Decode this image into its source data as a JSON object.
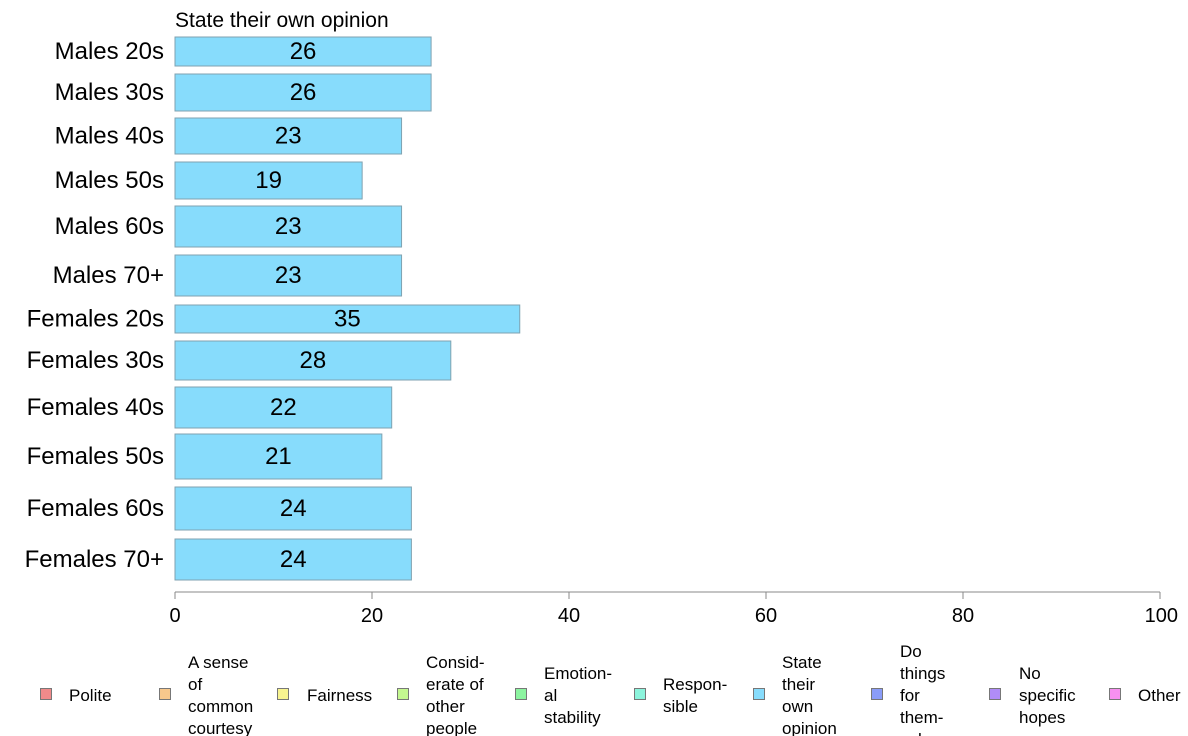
{
  "chart_data": {
    "type": "bar",
    "orientation": "horizontal",
    "title": "",
    "series_title": "State their own opinion",
    "categories": [
      "Males 20s",
      "Males 30s",
      "Males 40s",
      "Males 50s",
      "Males 60s",
      "Males 70+",
      "Females 20s",
      "Females 30s",
      "Females 40s",
      "Females 50s",
      "Females 60s",
      "Females 70+"
    ],
    "series": [
      {
        "name": "State their own opinion",
        "values": [
          26,
          26,
          23,
          19,
          23,
          23,
          35,
          28,
          22,
          21,
          24,
          24
        ],
        "color": "#87dcfc"
      }
    ],
    "xlim": [
      0,
      100
    ],
    "xticks": [
      0,
      20,
      40,
      60,
      80,
      100
    ],
    "xlabel": "",
    "ylabel": "",
    "grid": false,
    "legend_position": "bottom"
  },
  "legend": [
    {
      "label": "Polite",
      "color": "#f08a8a"
    },
    {
      "label": "A sense\nof\ncommon\ncourtesy",
      "color": "#f8c88c"
    },
    {
      "label": "Fairness",
      "color": "#f8f490"
    },
    {
      "label": "Consid-\nerate of\nother\npeople",
      "color": "#c4f890"
    },
    {
      "label": "Emotion-\nal\nstability",
      "color": "#8cf4a0"
    },
    {
      "label": "Respon-\nsible",
      "color": "#8cf4dc"
    },
    {
      "label": "State\ntheir\nown\nopinion",
      "color": "#87dcfc"
    },
    {
      "label": "Do\nthings\nfor\nthem-\nselves",
      "color": "#8a9cf8"
    },
    {
      "label": "No\nspecific\nhopes",
      "color": "#b08cf8"
    },
    {
      "label": "Other",
      "color": "#f890f0"
    }
  ]
}
